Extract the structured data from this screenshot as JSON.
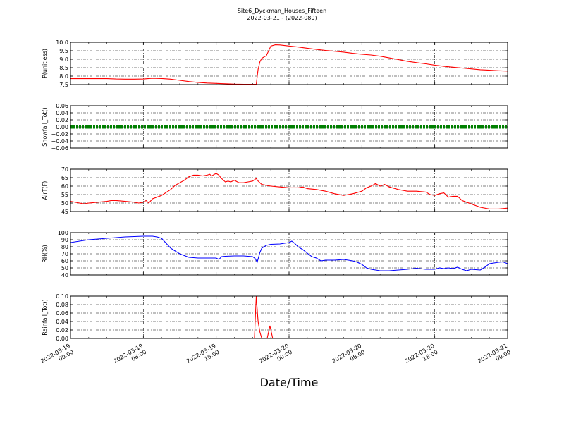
{
  "title": "Site6_Dyckman_Houses_Fifteen",
  "subtitle": "2022-03-21 - (2022-080)",
  "xlabel": "Date/Time",
  "chart_data": {
    "type": "line",
    "x_tick_labels": [
      [
        "2022-03-19",
        "00:00"
      ],
      [
        "2022-03-19",
        "08:00"
      ],
      [
        "2022-03-19",
        "16:00"
      ],
      [
        "2022-03-20",
        "00:00"
      ],
      [
        "2022-03-20",
        "08:00"
      ],
      [
        "2022-03-20",
        "16:00"
      ],
      [
        "2022-03-21",
        "00:00"
      ]
    ],
    "x_range_hours": [
      0,
      48
    ],
    "grid": true,
    "panels": [
      {
        "id": "p",
        "ylabel": "P(unitless)",
        "ylim": [
          7.5,
          10.0
        ],
        "yticks": [
          "7.5",
          "8.0",
          "8.5",
          "9.0",
          "9.5",
          "10.0"
        ],
        "color": "#ff0000",
        "style": "line",
        "points": [
          [
            0,
            7.85
          ],
          [
            1,
            7.86
          ],
          [
            2,
            7.85
          ],
          [
            3,
            7.85
          ],
          [
            4,
            7.85
          ],
          [
            5,
            7.83
          ],
          [
            6,
            7.82
          ],
          [
            7,
            7.82
          ],
          [
            8,
            7.83
          ],
          [
            9,
            7.87
          ],
          [
            10,
            7.86
          ],
          [
            11,
            7.82
          ],
          [
            12,
            7.75
          ],
          [
            13,
            7.68
          ],
          [
            14,
            7.63
          ],
          [
            15,
            7.59
          ],
          [
            16,
            7.57
          ],
          [
            17,
            7.55
          ],
          [
            18,
            7.53
          ],
          [
            19,
            7.52
          ],
          [
            20,
            7.52
          ],
          [
            20.4,
            7.52
          ],
          [
            20.6,
            8.4
          ],
          [
            20.8,
            8.85
          ],
          [
            21,
            9.05
          ],
          [
            21.3,
            9.15
          ],
          [
            21.5,
            9.2
          ],
          [
            21.8,
            9.55
          ],
          [
            22,
            9.78
          ],
          [
            22.5,
            9.85
          ],
          [
            23,
            9.84
          ],
          [
            24,
            9.78
          ],
          [
            25,
            9.72
          ],
          [
            26,
            9.65
          ],
          [
            27,
            9.58
          ],
          [
            28,
            9.52
          ],
          [
            29,
            9.47
          ],
          [
            30,
            9.42
          ],
          [
            31,
            9.35
          ],
          [
            32,
            9.29
          ],
          [
            33,
            9.25
          ],
          [
            34,
            9.18
          ],
          [
            35,
            9.08
          ],
          [
            36,
            8.98
          ],
          [
            37,
            8.88
          ],
          [
            38,
            8.8
          ],
          [
            39,
            8.73
          ],
          [
            40,
            8.65
          ],
          [
            41,
            8.58
          ],
          [
            42,
            8.53
          ],
          [
            43,
            8.48
          ],
          [
            44,
            8.43
          ],
          [
            45,
            8.38
          ],
          [
            46,
            8.35
          ],
          [
            47,
            8.32
          ],
          [
            48,
            8.3
          ]
        ]
      },
      {
        "id": "snow",
        "ylabel": "Snowfall_Tot()",
        "ylim": [
          -0.06,
          0.06
        ],
        "yticks": [
          "−0.06",
          "−0.04",
          "−0.02",
          "0.00",
          "0.02",
          "0.04",
          "0.06"
        ],
        "color": "#008000",
        "style": "dots",
        "points": [
          [
            0,
            0
          ],
          [
            48,
            0
          ]
        ]
      },
      {
        "id": "airt",
        "ylabel": "AirT(F)",
        "ylim": [
          45,
          70
        ],
        "yticks": [
          "45",
          "50",
          "55",
          "60",
          "65",
          "70"
        ],
        "color": "#ff0000",
        "style": "line",
        "points": [
          [
            0,
            51
          ],
          [
            0.5,
            50.5
          ],
          [
            1,
            50
          ],
          [
            1.5,
            49.5
          ],
          [
            2,
            50
          ],
          [
            3,
            50.5
          ],
          [
            4,
            51
          ],
          [
            4.5,
            51.5
          ],
          [
            5,
            51.5
          ],
          [
            6,
            51
          ],
          [
            7,
            50.5
          ],
          [
            7.5,
            50
          ],
          [
            8,
            50.5
          ],
          [
            8.3,
            51.5
          ],
          [
            8.6,
            50
          ],
          [
            9,
            52.5
          ],
          [
            10,
            54.5
          ],
          [
            11,
            58
          ],
          [
            11.5,
            60.5
          ],
          [
            12,
            62
          ],
          [
            12.5,
            63.5
          ],
          [
            13,
            65.5
          ],
          [
            13.5,
            66.5
          ],
          [
            14,
            66.5
          ],
          [
            14.5,
            66
          ],
          [
            15,
            66.5
          ],
          [
            15.3,
            67
          ],
          [
            15.5,
            66
          ],
          [
            15.8,
            67
          ],
          [
            16,
            67.5
          ],
          [
            16.3,
            66.5
          ],
          [
            16.5,
            65
          ],
          [
            16.8,
            63.5
          ],
          [
            17,
            62.5
          ],
          [
            17.3,
            63
          ],
          [
            17.6,
            62.5
          ],
          [
            18,
            63.5
          ],
          [
            18.5,
            62
          ],
          [
            19,
            62
          ],
          [
            19.5,
            62.5
          ],
          [
            20,
            63
          ],
          [
            20.4,
            64.5
          ],
          [
            20.6,
            63
          ],
          [
            21,
            61
          ],
          [
            21.5,
            60.5
          ],
          [
            22,
            60
          ],
          [
            23,
            59.5
          ],
          [
            24,
            59
          ],
          [
            25,
            59
          ],
          [
            25.5,
            59.5
          ],
          [
            26,
            58.5
          ],
          [
            27,
            58
          ],
          [
            28,
            57
          ],
          [
            29,
            55.5
          ],
          [
            30,
            54.5
          ],
          [
            31,
            55.5
          ],
          [
            32,
            57
          ],
          [
            32.5,
            59
          ],
          [
            33,
            60
          ],
          [
            33.5,
            61.5
          ],
          [
            34,
            60
          ],
          [
            34.5,
            61
          ],
          [
            35,
            59.5
          ],
          [
            36,
            58
          ],
          [
            37,
            57
          ],
          [
            38,
            57
          ],
          [
            39,
            56.5
          ],
          [
            39.5,
            55
          ],
          [
            40,
            54.5
          ],
          [
            40.5,
            55.5
          ],
          [
            41,
            56
          ],
          [
            41.5,
            53.5
          ],
          [
            42,
            54
          ],
          [
            42.5,
            54
          ],
          [
            43,
            51.5
          ],
          [
            44,
            49.5
          ],
          [
            45,
            47.5
          ],
          [
            46,
            46.5
          ],
          [
            47,
            46.5
          ],
          [
            48,
            47
          ]
        ]
      },
      {
        "id": "rh",
        "ylabel": "RH(%)",
        "ylim": [
          40,
          100
        ],
        "yticks": [
          "40",
          "50",
          "60",
          "70",
          "80",
          "90",
          "100"
        ],
        "color": "#0000ff",
        "style": "line",
        "points": [
          [
            0,
            86
          ],
          [
            1,
            88
          ],
          [
            2,
            90
          ],
          [
            3,
            91
          ],
          [
            4,
            92
          ],
          [
            5,
            93
          ],
          [
            6,
            94
          ],
          [
            7,
            94.5
          ],
          [
            8,
            95
          ],
          [
            9,
            95
          ],
          [
            9.5,
            94
          ],
          [
            10,
            92
          ],
          [
            10.5,
            85
          ],
          [
            11,
            78
          ],
          [
            11.5,
            74
          ],
          [
            12,
            70
          ],
          [
            13,
            65
          ],
          [
            14,
            64
          ],
          [
            15,
            64
          ],
          [
            16,
            64
          ],
          [
            16.3,
            62
          ],
          [
            16.6,
            66
          ],
          [
            17,
            66.5
          ],
          [
            18,
            67
          ],
          [
            19,
            67
          ],
          [
            20,
            66
          ],
          [
            20.3,
            63
          ],
          [
            20.5,
            58
          ],
          [
            20.8,
            72
          ],
          [
            21,
            78
          ],
          [
            21.5,
            82
          ],
          [
            22,
            83.5
          ],
          [
            23,
            84
          ],
          [
            24,
            86
          ],
          [
            24.3,
            88
          ],
          [
            24.6,
            85
          ],
          [
            25,
            80
          ],
          [
            25.5,
            76
          ],
          [
            26,
            71
          ],
          [
            26.5,
            66
          ],
          [
            27,
            64
          ],
          [
            27.5,
            60
          ],
          [
            28,
            61
          ],
          [
            29,
            61
          ],
          [
            30,
            62
          ],
          [
            31,
            60
          ],
          [
            31.5,
            58
          ],
          [
            32,
            55
          ],
          [
            32.5,
            50
          ],
          [
            33,
            48
          ],
          [
            34,
            46
          ],
          [
            35,
            46
          ],
          [
            36,
            47
          ],
          [
            37,
            48
          ],
          [
            38,
            49.5
          ],
          [
            39,
            48
          ],
          [
            40,
            48
          ],
          [
            40.5,
            50
          ],
          [
            41,
            49
          ],
          [
            41.5,
            50
          ],
          [
            42,
            49
          ],
          [
            42.5,
            51
          ],
          [
            43,
            48
          ],
          [
            43.5,
            46
          ],
          [
            44,
            48
          ],
          [
            45,
            47
          ],
          [
            45.5,
            51
          ],
          [
            46,
            56
          ],
          [
            47,
            58
          ],
          [
            47.5,
            58.5
          ],
          [
            48,
            56
          ]
        ]
      },
      {
        "id": "rain",
        "ylabel": "Rainfall_Tot()",
        "ylim": [
          0,
          0.1
        ],
        "yticks": [
          "0.00",
          "0.02",
          "0.04",
          "0.06",
          "0.08",
          "0.10"
        ],
        "color": "#ff0000",
        "style": "line",
        "points": [
          [
            0,
            0
          ],
          [
            20.2,
            0
          ],
          [
            20.4,
            0.1
          ],
          [
            20.6,
            0.04
          ],
          [
            20.8,
            0.015
          ],
          [
            21,
            0
          ],
          [
            21.6,
            0
          ],
          [
            21.9,
            0.03
          ],
          [
            22.2,
            0
          ],
          [
            48,
            0
          ]
        ]
      }
    ]
  }
}
